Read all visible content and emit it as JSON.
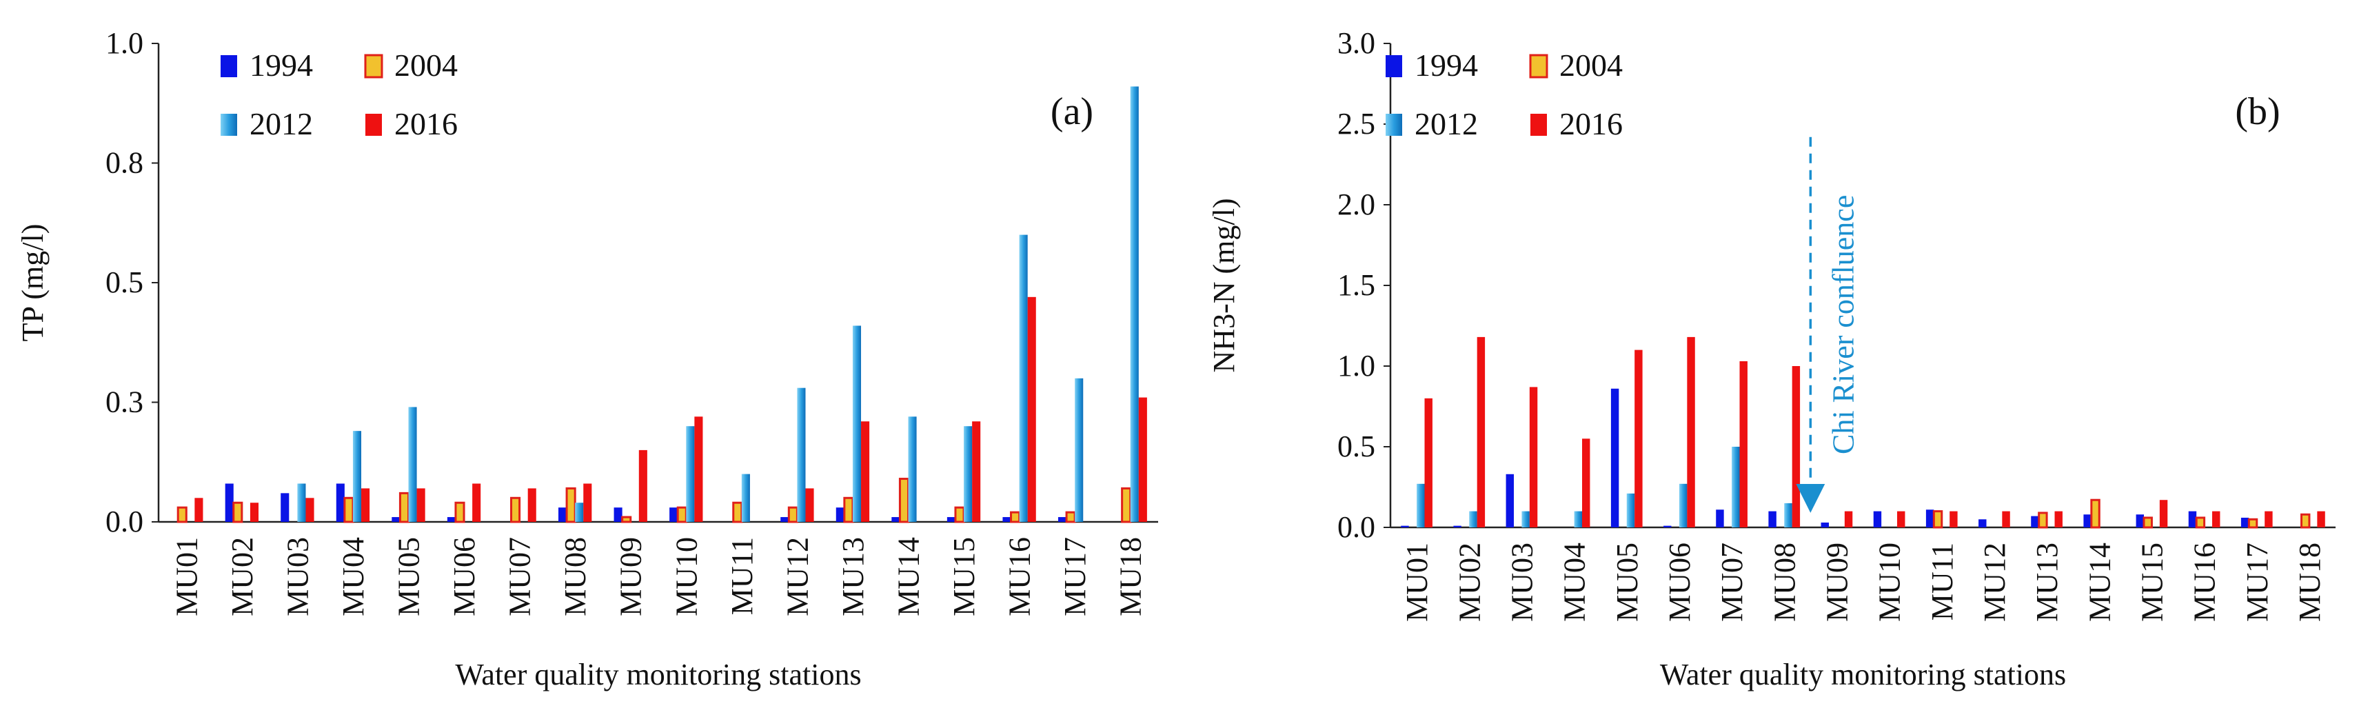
{
  "chart_data": [
    {
      "type": "bar",
      "panel_label": "(a)",
      "xlabel": "Water quality monitoring stations",
      "ylabel": "TP (mg/l)",
      "ylim": [
        0,
        1.0
      ],
      "yticks": [
        0,
        0.25,
        0.5,
        0.75,
        1.0
      ],
      "yticklabels": [
        "0.0",
        "0.3",
        "0.5",
        "0.8",
        "1.0"
      ],
      "grid": false,
      "legend_position": "top-left",
      "categories": [
        "MU01",
        "MU02",
        "MU03",
        "MU04",
        "MU05",
        "MU06",
        "MU07",
        "MU08",
        "MU09",
        "MU10",
        "MU11",
        "MU12",
        "MU13",
        "MU14",
        "MU15",
        "MU16",
        "MU17",
        "MU18"
      ],
      "series": [
        {
          "name": "1994",
          "color": "#0a14e6",
          "style": "solid",
          "values": [
            0.0,
            0.08,
            0.06,
            0.08,
            0.01,
            0.01,
            0.0,
            0.03,
            0.03,
            0.03,
            0.0,
            0.01,
            0.03,
            0.01,
            0.01,
            0.01,
            0.01,
            0.0
          ]
        },
        {
          "name": "2004",
          "color": "#f2c12e",
          "edge": "#e0201a",
          "style": "outlined",
          "values": [
            0.03,
            0.04,
            0.0,
            0.05,
            0.06,
            0.04,
            0.05,
            0.07,
            0.01,
            0.03,
            0.04,
            0.03,
            0.05,
            0.09,
            0.03,
            0.02,
            0.02,
            0.07
          ]
        },
        {
          "name": "2012",
          "color": "#2a9ee0",
          "style": "gradient",
          "values": [
            0.0,
            0.0,
            0.08,
            0.19,
            0.24,
            0.0,
            0.0,
            0.04,
            0.0,
            0.2,
            0.1,
            0.28,
            0.41,
            0.22,
            0.2,
            0.6,
            0.3,
            0.91
          ]
        },
        {
          "name": "2016",
          "color": "#ee1111",
          "style": "solid",
          "values": [
            0.05,
            0.04,
            0.05,
            0.07,
            0.07,
            0.08,
            0.07,
            0.08,
            0.15,
            0.22,
            0.0,
            0.07,
            0.21,
            0.0,
            0.21,
            0.47,
            0.0,
            0.26
          ]
        }
      ]
    },
    {
      "type": "bar",
      "panel_label": "(b)",
      "xlabel": "Water quality monitoring stations",
      "ylabel": "NH3-N (mg/l)",
      "ylim": [
        0,
        3.0
      ],
      "yticks": [
        0,
        0.5,
        1.0,
        1.5,
        2.0,
        2.5,
        3.0
      ],
      "yticklabels": [
        "0.0",
        "0.5",
        "1.0",
        "1.5",
        "2.0",
        "2.5",
        "3.0"
      ],
      "grid": false,
      "legend_position": "top-left",
      "annotation": {
        "text": "Chi River confluence",
        "color": "#1a8fcf",
        "between": [
          "MU08",
          "MU09"
        ],
        "y_from": 2.42,
        "y_to": 0.18
      },
      "categories": [
        "MU01",
        "MU02",
        "MU03",
        "MU04",
        "MU05",
        "MU06",
        "MU07",
        "MU08",
        "MU09",
        "MU10",
        "MU11",
        "MU12",
        "MU13",
        "MU14",
        "MU15",
        "MU16",
        "MU17",
        "MU18"
      ],
      "series": [
        {
          "name": "1994",
          "color": "#0a14e6",
          "style": "solid",
          "values": [
            0.01,
            0.01,
            0.33,
            0.0,
            0.86,
            0.01,
            0.11,
            0.1,
            0.03,
            0.1,
            0.11,
            0.05,
            0.07,
            0.08,
            0.08,
            0.1,
            0.06,
            0.0
          ]
        },
        {
          "name": "2004",
          "color": "#f2c12e",
          "edge": "#e0201a",
          "style": "outlined",
          "values": [
            0.0,
            0.0,
            0.0,
            0.0,
            0.0,
            0.0,
            0.0,
            0.0,
            0.0,
            0.0,
            0.1,
            0.0,
            0.09,
            0.17,
            0.06,
            0.06,
            0.05,
            0.08
          ]
        },
        {
          "name": "2012",
          "color": "#2a9ee0",
          "style": "gradient",
          "values": [
            0.27,
            0.1,
            0.1,
            0.1,
            0.21,
            0.27,
            0.5,
            0.15,
            0.0,
            0.0,
            0.0,
            0.0,
            0.0,
            0.0,
            0.0,
            0.0,
            0.0,
            0.0
          ]
        },
        {
          "name": "2016",
          "color": "#ee1111",
          "style": "solid",
          "values": [
            0.8,
            1.18,
            0.87,
            0.55,
            1.1,
            1.18,
            1.03,
            1.0,
            0.1,
            0.1,
            0.1,
            0.1,
            0.1,
            0.0,
            0.17,
            0.1,
            0.1,
            0.1
          ]
        }
      ]
    }
  ]
}
